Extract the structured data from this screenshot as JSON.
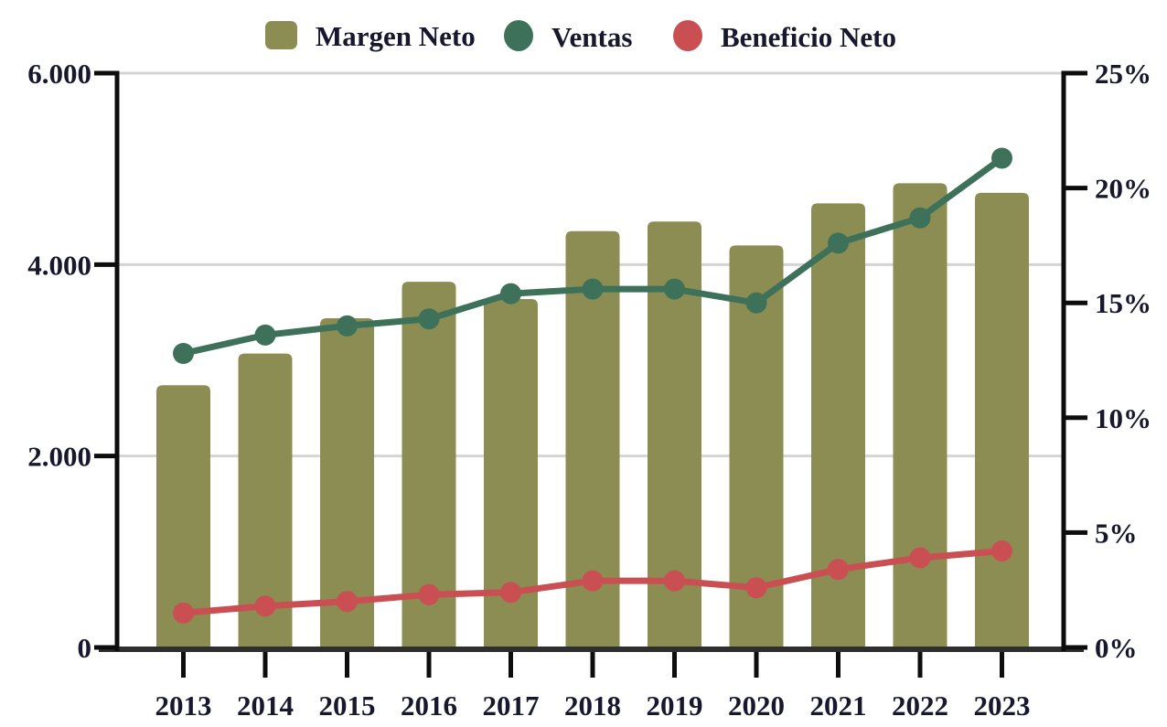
{
  "legend": {
    "position": "top",
    "items": [
      {
        "label": "Margen Neto",
        "color": "#8C8D53",
        "shape": "square"
      },
      {
        "label": "Ventas",
        "color": "#3E7159",
        "shape": "circle"
      },
      {
        "label": "Beneficio Neto",
        "color": "#C94F53",
        "shape": "circle"
      }
    ]
  },
  "chart_data": {
    "type": "bar",
    "subtype": "combo-bar-line-dual-axis",
    "title": "",
    "categories": [
      "2013",
      "2014",
      "2015",
      "2016",
      "2017",
      "2018",
      "2019",
      "2020",
      "2021",
      "2022",
      "2023"
    ],
    "series": [
      {
        "name": "Margen Neto",
        "type": "bar",
        "axis": "left",
        "color": "#8C8D53",
        "values": [
          2740,
          3070,
          3440,
          3820,
          3640,
          4350,
          4450,
          4200,
          4640,
          4850,
          4750
        ]
      },
      {
        "name": "Ventas",
        "type": "line",
        "axis": "right",
        "color": "#3E7159",
        "values": [
          12.8,
          13.6,
          14.0,
          14.3,
          15.4,
          15.6,
          15.6,
          15.0,
          17.6,
          18.7,
          21.3
        ]
      },
      {
        "name": "Beneficio Neto",
        "type": "line",
        "axis": "right",
        "color": "#C94F53",
        "values": [
          1.5,
          1.8,
          2.0,
          2.3,
          2.4,
          2.9,
          2.9,
          2.6,
          3.4,
          3.9,
          4.2
        ]
      }
    ],
    "left_axis": {
      "range": [
        0,
        6000
      ],
      "tick_values": [
        6000,
        4000,
        2000,
        0
      ],
      "tick_labels": [
        "6.000",
        "4.000",
        "2.000",
        "0"
      ]
    },
    "right_axis": {
      "range": [
        0,
        25
      ],
      "unit": "%",
      "tick_values": [
        25,
        20,
        15,
        10,
        5,
        0
      ],
      "tick_labels": [
        "25%",
        "20%",
        "15%",
        "10%",
        "5%",
        "0%"
      ]
    },
    "grid": {
      "show": true,
      "at_left_values": [
        6000,
        4000,
        2000
      ],
      "color": "#D4D4D4"
    },
    "legend_position": "top",
    "xlabel": "",
    "ylabel_left": "",
    "ylabel_right": ""
  },
  "style": {
    "axis_color": "#0D0D0D",
    "bottom_axis_color": "#2E2E2E",
    "grid_color": "#D4D4D4",
    "text_color": "#17172e",
    "background": "#FFFFFF"
  }
}
